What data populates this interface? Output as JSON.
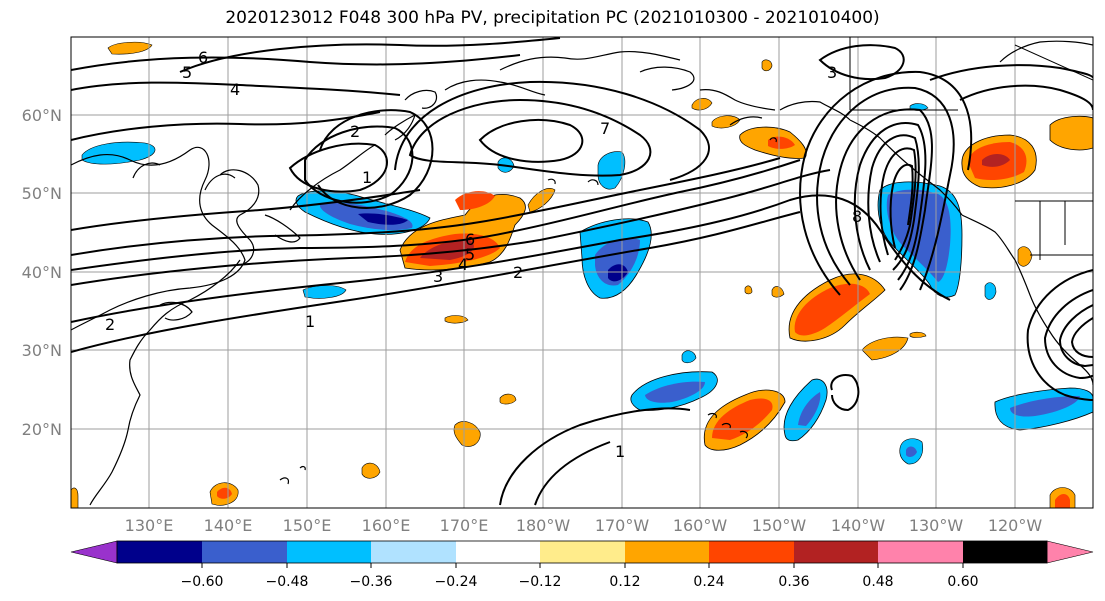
{
  "title": "2020123012 F048 300 hPa PV, precipitation PC (2021010300 - 2021010400)",
  "map": {
    "lat_labels": [
      "60°N",
      "50°N",
      "40°N",
      "30°N",
      "20°N"
    ],
    "lon_labels": [
      "130°E",
      "140°E",
      "150°E",
      "160°E",
      "170°E",
      "180°W",
      "170°W",
      "160°W",
      "150°W",
      "140°W",
      "130°W",
      "120°W"
    ],
    "contour_labels": [
      "1",
      "2",
      "3",
      "4",
      "5",
      "6",
      "7",
      "8",
      "2",
      "1",
      "6",
      "5",
      "4",
      "3",
      "2",
      "1"
    ],
    "contour_color": "#000000",
    "coast_color": "#000000",
    "grid_color": "#9e9e9e"
  },
  "colorbar": {
    "colors": [
      "#9932cc",
      "#00008b",
      "#3a5fcd",
      "#00bfff",
      "#b0e2ff",
      "#ffffff",
      "#ffec8b",
      "#ffa500",
      "#ff4500",
      "#b22222",
      "#ff82ab"
    ],
    "tick_labels": [
      "−0.60",
      "−0.48",
      "−0.36",
      "−0.24",
      "−0.12",
      "0.12",
      "0.24",
      "0.36",
      "0.48",
      "0.60"
    ]
  }
}
